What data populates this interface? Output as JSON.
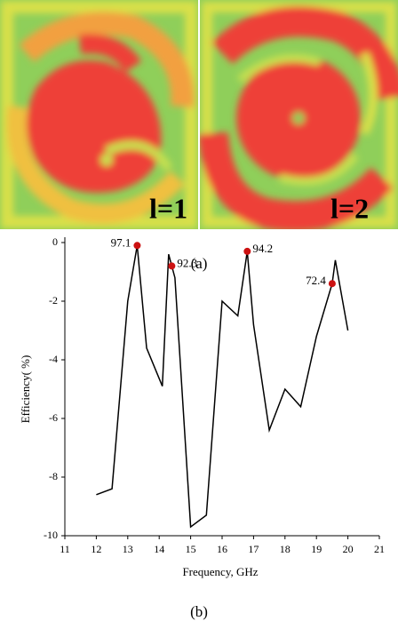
{
  "figure_a": {
    "panels": [
      {
        "label": "l=1"
      },
      {
        "label": "l=2"
      }
    ],
    "caption": "(a)"
  },
  "chart_data": {
    "type": "line",
    "xlabel": "Frequency, GHz",
    "ylabel": "Efficiency(   %)",
    "xlim": [
      11,
      21
    ],
    "xticks": [
      11,
      12,
      13,
      14,
      15,
      16,
      17,
      18,
      19,
      20,
      21
    ],
    "ylim": [
      -10,
      0
    ],
    "yticks": [
      0,
      -2,
      -4,
      -6,
      -8,
      -10
    ],
    "series": [
      {
        "color": "#000000",
        "x": [
          12,
          12.5,
          13,
          13.3,
          13.6,
          14.1,
          14.3,
          14.5,
          15,
          15.5,
          16,
          16.5,
          16.8,
          17,
          17.5,
          18,
          18.5,
          19,
          19.5,
          19.6,
          20
        ],
        "values": [
          -8.6,
          -8.4,
          -2,
          -0.1,
          -3.6,
          -4.9,
          -0.4,
          -1.2,
          -9.7,
          -9.3,
          -2,
          -2.5,
          -0.3,
          -2.8,
          -6.4,
          -5,
          -5.6,
          -3.2,
          -1.4,
          -0.6,
          -3
        ]
      }
    ],
    "marker_color": "#cc1111",
    "annotations": [
      {
        "text": "97.1",
        "x": 13.3,
        "y": -0.1
      },
      {
        "text": "92.3",
        "x": 14.4,
        "y": -0.8
      },
      {
        "text": "94.2",
        "x": 16.8,
        "y": -0.3
      },
      {
        "text": "72.4",
        "x": 19.5,
        "y": -1.4
      }
    ]
  },
  "figure_b": {
    "caption": "(b)"
  }
}
